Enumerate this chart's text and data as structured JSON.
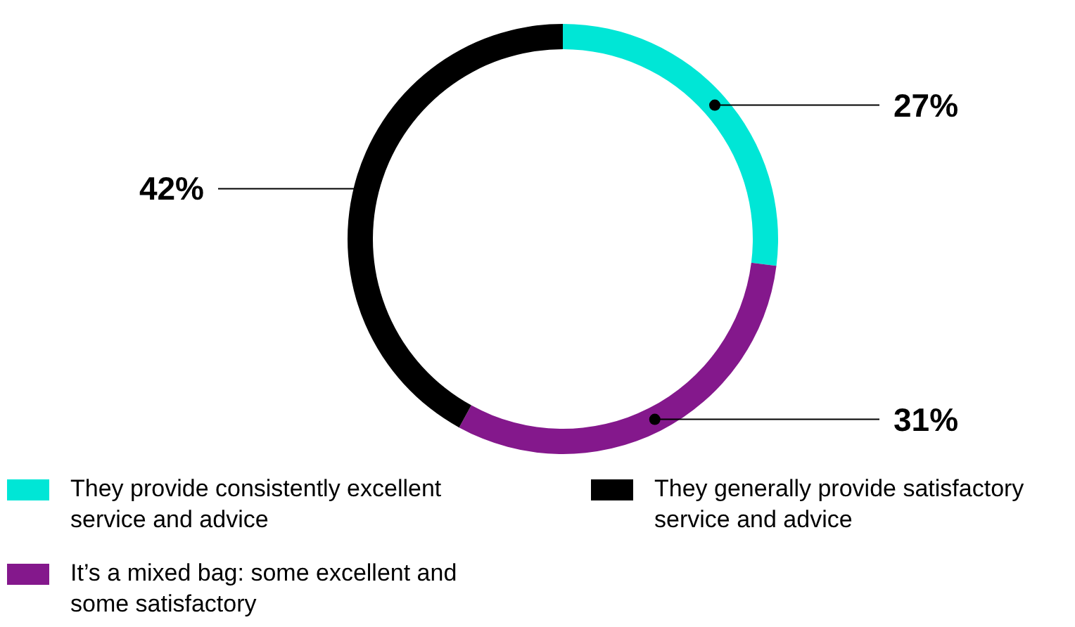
{
  "chart_data": {
    "type": "donut",
    "categories": [
      "They provide consistently excellent service and advice",
      "It’s a mixed bag: some excellent and some satisfactory",
      "They generally provide satisfactory service and advice"
    ],
    "values": [
      27,
      31,
      42
    ],
    "colors": [
      "#00e6d6",
      "#84188c",
      "#000000"
    ],
    "value_labels": [
      "27%",
      "31%",
      "42%"
    ],
    "legend": "bottom"
  }
}
